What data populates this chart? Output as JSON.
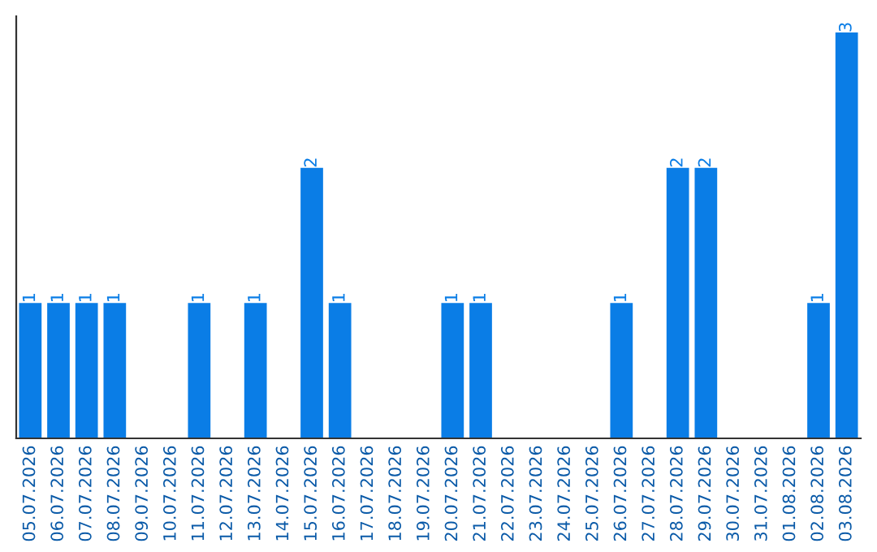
{
  "chart_data": {
    "type": "bar",
    "categories": [
      "05.07.2026",
      "06.07.2026",
      "07.07.2026",
      "08.07.2026",
      "09.07.2026",
      "10.07.2026",
      "11.07.2026",
      "12.07.2026",
      "13.07.2026",
      "14.07.2026",
      "15.07.2026",
      "16.07.2026",
      "17.07.2026",
      "18.07.2026",
      "19.07.2026",
      "20.07.2026",
      "21.07.2026",
      "22.07.2026",
      "23.07.2026",
      "24.07.2026",
      "25.07.2026",
      "26.07.2026",
      "27.07.2026",
      "28.07.2026",
      "29.07.2026",
      "30.07.2026",
      "31.07.2026",
      "01.08.2026",
      "02.08.2026",
      "03.08.2026"
    ],
    "values": [
      1,
      1,
      1,
      1,
      0,
      0,
      1,
      0,
      1,
      0,
      2,
      1,
      0,
      0,
      0,
      1,
      1,
      0,
      0,
      0,
      0,
      1,
      0,
      2,
      2,
      0,
      0,
      0,
      1,
      3
    ],
    "value_labels": [
      "1",
      "1",
      "1",
      "1",
      null,
      null,
      "1",
      null,
      "1",
      null,
      "2",
      "1",
      null,
      null,
      null,
      "1",
      "1",
      null,
      null,
      null,
      null,
      "1",
      null,
      "2",
      "2",
      null,
      null,
      null,
      "1",
      "3"
    ],
    "color": "#0a7de6",
    "tick_labels": "x",
    "grid": false,
    "legend": false
  }
}
